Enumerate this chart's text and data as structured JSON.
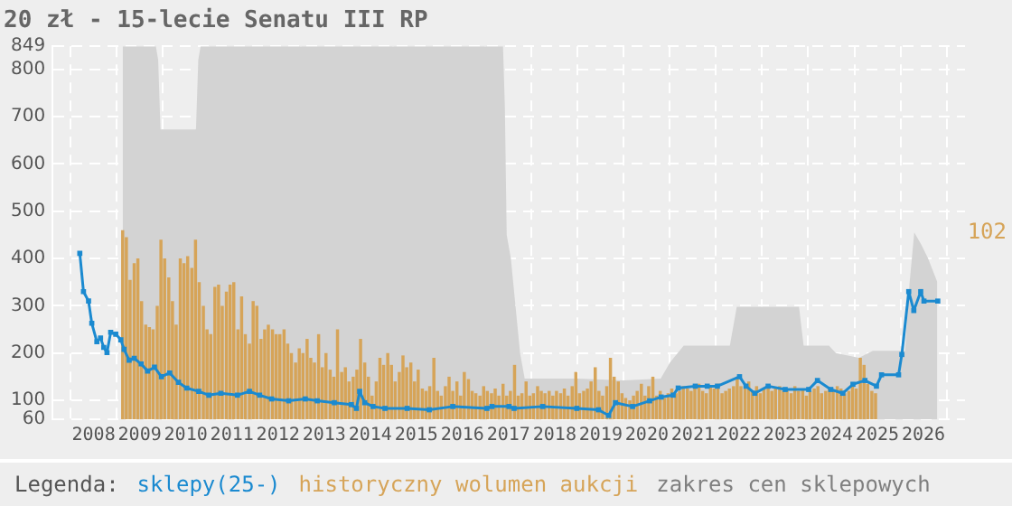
{
  "chart_data": {
    "type": "line",
    "title": "20 zł - 15-lecie Senatu III RP",
    "legend_title": "Legenda:",
    "legend": "bottom",
    "grid": true,
    "xlim": [
      2007.63,
      2026.38
    ],
    "xticks": [
      2008,
      2009,
      2010,
      2011,
      2012,
      2013,
      2014,
      2015,
      2016,
      2017,
      2018,
      2019,
      2020,
      2021,
      2022,
      2023,
      2024,
      2025,
      2026
    ],
    "ylim": [
      60,
      849
    ],
    "yticks": [
      60,
      100,
      200,
      300,
      400,
      500,
      600,
      700,
      800,
      849
    ],
    "annotations": [
      "102"
    ],
    "series": [
      {
        "name": "sklepy(25-)",
        "color": "#1b8ad0",
        "marker": "square",
        "x": [
          2007.7,
          2007.78,
          2007.89,
          2007.96,
          2008.07,
          2008.15,
          2008.22,
          2008.29,
          2008.37,
          2008.48,
          2008.59,
          2008.66,
          2008.77,
          2008.88,
          2009.03,
          2009.17,
          2009.32,
          2009.47,
          2009.65,
          2009.84,
          2010.02,
          2010.28,
          2010.5,
          2010.76,
          2011.12,
          2011.38,
          2011.6,
          2011.86,
          2012.23,
          2012.59,
          2012.85,
          2013.22,
          2013.59,
          2013.7,
          2013.77,
          2013.88,
          2014.06,
          2014.32,
          2014.8,
          2015.28,
          2015.79,
          2016.53,
          2016.64,
          2017.01,
          2017.12,
          2017.74,
          2018.48,
          2018.95,
          2019.17,
          2019.32,
          2019.69,
          2020.06,
          2020.31,
          2020.57,
          2020.68,
          2021.05,
          2021.31,
          2021.53,
          2022.01,
          2022.15,
          2022.34,
          2022.63,
          2023.0,
          2023.51,
          2023.7,
          2023.99,
          2024.25,
          2024.47,
          2024.73,
          2024.98,
          2025.09,
          2025.46,
          2025.53,
          2025.68,
          2025.79,
          2025.94,
          2026.01,
          2026.31
        ],
        "values": [
          411,
          330,
          310,
          263,
          224,
          232,
          212,
          201,
          244,
          240,
          228,
          208,
          185,
          189,
          177,
          162,
          170,
          150,
          158,
          138,
          126,
          119,
          111,
          115,
          111,
          119,
          111,
          103,
          99,
          103,
          99,
          95,
          91,
          83,
          119,
          95,
          87,
          83,
          83,
          80,
          87,
          83,
          87,
          87,
          83,
          87,
          83,
          80,
          68,
          95,
          87,
          99,
          107,
          111,
          126,
          130,
          130,
          130,
          150,
          130,
          115,
          130,
          123,
          123,
          142,
          123,
          115,
          134,
          142,
          130,
          154,
          154,
          197,
          330,
          290,
          330,
          310,
          310
        ]
      },
      {
        "name": "historyczny wolumen aukcji",
        "type": "bar",
        "color": "#d6a458",
        "x": [
          2008.63,
          2008.71,
          2008.79,
          2008.88,
          2008.96,
          2009.04,
          2009.13,
          2009.21,
          2009.29,
          2009.38,
          2009.46,
          2009.54,
          2009.63,
          2009.71,
          2009.79,
          2009.88,
          2009.96,
          2010.04,
          2010.13,
          2010.21,
          2010.29,
          2010.38,
          2010.46,
          2010.54,
          2010.63,
          2010.71,
          2010.79,
          2010.88,
          2010.96,
          2011.04,
          2011.13,
          2011.21,
          2011.29,
          2011.38,
          2011.46,
          2011.54,
          2011.63,
          2011.71,
          2011.79,
          2011.88,
          2011.96,
          2012.04,
          2012.13,
          2012.21,
          2012.29,
          2012.38,
          2012.46,
          2012.54,
          2012.63,
          2012.71,
          2012.79,
          2012.88,
          2012.96,
          2013.04,
          2013.13,
          2013.21,
          2013.29,
          2013.38,
          2013.46,
          2013.54,
          2013.63,
          2013.71,
          2013.79,
          2013.88,
          2013.96,
          2014.04,
          2014.13,
          2014.21,
          2014.29,
          2014.38,
          2014.46,
          2014.54,
          2014.63,
          2014.71,
          2014.79,
          2014.88,
          2014.96,
          2015.04,
          2015.13,
          2015.21,
          2015.29,
          2015.38,
          2015.46,
          2015.54,
          2015.63,
          2015.71,
          2015.79,
          2015.88,
          2015.96,
          2016.04,
          2016.13,
          2016.21,
          2016.29,
          2016.38,
          2016.46,
          2016.54,
          2016.63,
          2016.71,
          2016.79,
          2016.88,
          2016.96,
          2017.04,
          2017.13,
          2017.21,
          2017.29,
          2017.38,
          2017.46,
          2017.54,
          2017.63,
          2017.71,
          2017.79,
          2017.88,
          2017.96,
          2018.04,
          2018.13,
          2018.21,
          2018.29,
          2018.38,
          2018.46,
          2018.54,
          2018.63,
          2018.71,
          2018.79,
          2018.88,
          2018.96,
          2019.04,
          2019.13,
          2019.21,
          2019.29,
          2019.38,
          2019.46,
          2019.54,
          2019.63,
          2019.71,
          2019.79,
          2019.88,
          2019.96,
          2020.04,
          2020.13,
          2020.21,
          2020.29,
          2020.38,
          2020.46,
          2020.54,
          2020.63,
          2020.71,
          2020.79,
          2020.88,
          2020.96,
          2021.04,
          2021.13,
          2021.21,
          2021.29,
          2021.38,
          2021.46,
          2021.54,
          2021.63,
          2021.71,
          2021.79,
          2021.88,
          2021.96,
          2022.04,
          2022.13,
          2022.21,
          2022.29,
          2022.38,
          2022.46,
          2022.54,
          2022.63,
          2022.71,
          2022.79,
          2022.88,
          2022.96,
          2023.04,
          2023.13,
          2023.21,
          2023.29,
          2023.38,
          2023.46,
          2023.54,
          2023.63,
          2023.71,
          2023.79,
          2023.88,
          2023.96,
          2024.04,
          2024.13,
          2024.21,
          2024.29,
          2024.38,
          2024.46,
          2024.54,
          2024.63,
          2024.71,
          2024.79,
          2024.88,
          2024.96
        ],
        "values": [
          460,
          445,
          355,
          390,
          400,
          310,
          260,
          255,
          250,
          300,
          440,
          400,
          360,
          310,
          260,
          400,
          390,
          405,
          380,
          440,
          350,
          300,
          250,
          240,
          340,
          345,
          300,
          330,
          345,
          350,
          250,
          320,
          240,
          220,
          310,
          300,
          230,
          250,
          260,
          250,
          240,
          240,
          250,
          220,
          200,
          180,
          210,
          200,
          230,
          190,
          180,
          240,
          170,
          200,
          165,
          150,
          250,
          160,
          170,
          140,
          150,
          165,
          230,
          180,
          150,
          110,
          140,
          190,
          175,
          200,
          175,
          140,
          160,
          195,
          170,
          180,
          140,
          165,
          125,
          120,
          130,
          190,
          120,
          110,
          130,
          150,
          120,
          140,
          110,
          160,
          145,
          120,
          115,
          110,
          130,
          120,
          115,
          125,
          110,
          135,
          110,
          120,
          175,
          110,
          115,
          140,
          110,
          115,
          130,
          120,
          115,
          120,
          110,
          120,
          115,
          125,
          110,
          130,
          160,
          115,
          120,
          125,
          140,
          170,
          120,
          110,
          130,
          190,
          150,
          140,
          115,
          105,
          100,
          110,
          120,
          135,
          110,
          130,
          150,
          110,
          120,
          105,
          115,
          125,
          115,
          120,
          130,
          125,
          120,
          125,
          135,
          120,
          115,
          130,
          125,
          135,
          115,
          120,
          125,
          130,
          150,
          130,
          125,
          140,
          120,
          130,
          115,
          125,
          130,
          120,
          125,
          130,
          120,
          125,
          115,
          130,
          120,
          125,
          110,
          120,
          125,
          130,
          115,
          120,
          125,
          120,
          130,
          125,
          115,
          120,
          130,
          125,
          190,
          175,
          135,
          120,
          115
        ]
      },
      {
        "name": "zakres cen sklepowych",
        "type": "area",
        "color": "#d3d3d3",
        "x": [
          2008.63,
          2009.35,
          2009.4,
          2009.45,
          2010.22,
          2010.27,
          2010.32,
          2016.88,
          2016.92,
          2016.96,
          2017.05,
          2017.15,
          2017.25,
          2017.35,
          2018.5,
          2019.5,
          2020.3,
          2020.5,
          2020.8,
          2021.8,
          2021.95,
          2023.3,
          2023.4,
          2023.95,
          2024.1,
          2024.6,
          2024.9,
          2025.6,
          2025.7,
          2025.8,
          2025.95,
          2026.1,
          2026.3
        ],
        "values": [
          849,
          849,
          820,
          673,
          673,
          820,
          849,
          849,
          720,
          450,
          400,
          300,
          200,
          146,
          146,
          142,
          146,
          180,
          216,
          216,
          298,
          298,
          216,
          216,
          200,
          190,
          205,
          205,
          350,
          455,
          430,
          400,
          350
        ]
      }
    ]
  }
}
